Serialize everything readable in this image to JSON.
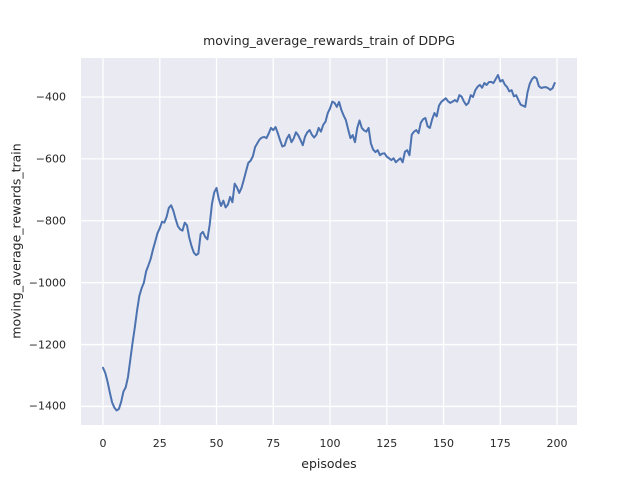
{
  "chart_data": {
    "type": "line",
    "title": "moving_average_rewards_train of DDPG",
    "xlabel": "episodes",
    "ylabel": "moving_average_rewards_train",
    "xlim": [
      -9.7,
      208.8
    ],
    "ylim": [
      -1460,
      -274
    ],
    "xticks": [
      0,
      25,
      50,
      75,
      100,
      125,
      150,
      175,
      200
    ],
    "xtick_labels": [
      "0",
      "25",
      "50",
      "75",
      "100",
      "125",
      "150",
      "175",
      "200"
    ],
    "yticks": [
      -400,
      -600,
      -800,
      -1000,
      -1200,
      -1400
    ],
    "ytick_labels": [
      "−400",
      "−600",
      "−800",
      "−1000",
      "−1200",
      "−1400"
    ],
    "grid": true,
    "legend": null,
    "style": "seaborn-darkgrid",
    "colors": {
      "line": "#4c72b0",
      "plot_bg": "#eaeaf2",
      "grid": "#ffffff",
      "text": "#262626",
      "fig_bg": "#ffffff"
    },
    "series": [
      {
        "name": "moving_average_rewards_train",
        "x_start": 0,
        "x_step": 1,
        "y": [
          -1275,
          -1292,
          -1320,
          -1355,
          -1387,
          -1404,
          -1413,
          -1408,
          -1385,
          -1352,
          -1338,
          -1305,
          -1250,
          -1195,
          -1145,
          -1090,
          -1043,
          -1018,
          -1000,
          -963,
          -944,
          -923,
          -893,
          -867,
          -840,
          -824,
          -803,
          -806,
          -788,
          -758,
          -750,
          -768,
          -795,
          -818,
          -828,
          -832,
          -806,
          -815,
          -855,
          -882,
          -903,
          -911,
          -906,
          -843,
          -836,
          -852,
          -860,
          -812,
          -745,
          -708,
          -694,
          -730,
          -752,
          -735,
          -757,
          -748,
          -723,
          -740,
          -680,
          -692,
          -710,
          -694,
          -668,
          -640,
          -613,
          -606,
          -592,
          -562,
          -549,
          -537,
          -531,
          -529,
          -533,
          -518,
          -500,
          -507,
          -497,
          -517,
          -540,
          -560,
          -557,
          -534,
          -522,
          -546,
          -534,
          -514,
          -524,
          -539,
          -556,
          -528,
          -514,
          -507,
          -522,
          -531,
          -522,
          -500,
          -512,
          -490,
          -480,
          -452,
          -437,
          -415,
          -419,
          -432,
          -416,
          -442,
          -460,
          -475,
          -505,
          -533,
          -523,
          -546,
          -500,
          -476,
          -500,
          -508,
          -512,
          -500,
          -550,
          -570,
          -578,
          -572,
          -588,
          -583,
          -582,
          -593,
          -598,
          -604,
          -598,
          -611,
          -604,
          -598,
          -611,
          -577,
          -572,
          -588,
          -522,
          -512,
          -507,
          -517,
          -483,
          -472,
          -468,
          -495,
          -500,
          -472,
          -452,
          -463,
          -428,
          -416,
          -410,
          -404,
          -414,
          -419,
          -415,
          -410,
          -415,
          -394,
          -399,
          -415,
          -426,
          -419,
          -394,
          -400,
          -378,
          -367,
          -361,
          -370,
          -355,
          -361,
          -352,
          -351,
          -355,
          -342,
          -329,
          -350,
          -345,
          -360,
          -368,
          -382,
          -378,
          -398,
          -394,
          -410,
          -425,
          -428,
          -432,
          -385,
          -357,
          -342,
          -335,
          -340,
          -365,
          -371,
          -369,
          -368,
          -371,
          -377,
          -372,
          -355
        ]
      }
    ]
  }
}
